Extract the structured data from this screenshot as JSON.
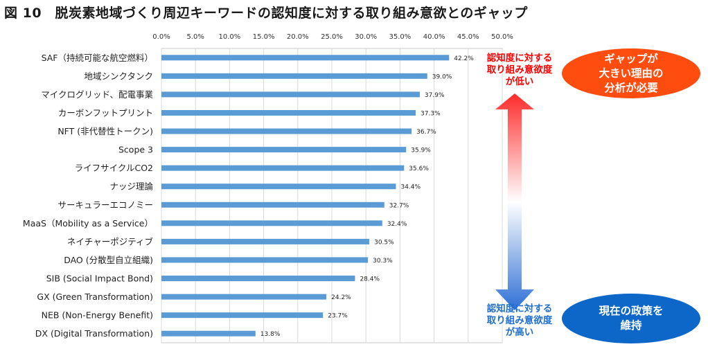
{
  "figure_title": "図 10　脱炭素地域づくり周辺キーワードの認知度に対する取り組み意欲とのギャップ",
  "colors": {
    "bar": "#5b9bd5",
    "arrow_top": "#ff2a2a",
    "arrow_bottom": "#2e6fd6",
    "ellipse_gap": "#ff4d10",
    "ellipse_policy": "#0d67c9"
  },
  "chart_data": {
    "type": "bar",
    "orientation": "horizontal",
    "title": "",
    "xlabel": "",
    "ylabel": "",
    "xlim": [
      0,
      50
    ],
    "x_ticks": [
      "0.0%",
      "5.0%",
      "10.0%",
      "15.0%",
      "20.0%",
      "25.0%",
      "30.0%",
      "35.0%",
      "40.0%",
      "45.0%",
      "50.0%"
    ],
    "grid": true,
    "categories": [
      "SAF（持続可能な航空燃料）",
      "地域シンクタンク",
      "マイクログリッド、配電事業",
      "カーボンフットプリント",
      "NFT (非代替性トークン)",
      "Scope 3",
      "ライフサイクルCO2",
      "ナッジ理論",
      "サーキュラーエコノミー",
      "MaaS（Mobility as a Service）",
      "ネイチャーポジティブ",
      "DAO (分散型自立組織)",
      "SIB (Social Impact Bond)",
      "GX (Green Transformation)",
      "NEB (Non-Energy Benefit)",
      "DX (Digital Transformation)"
    ],
    "values": [
      42.2,
      39.0,
      37.9,
      37.3,
      36.7,
      35.9,
      35.6,
      34.4,
      32.7,
      32.4,
      30.5,
      30.3,
      28.4,
      24.2,
      23.7,
      13.8
    ],
    "data_labels": [
      "42.2%",
      "39.0%",
      "37.9%",
      "37.3%",
      "36.7%",
      "35.9%",
      "35.6%",
      "34.4%",
      "32.7%",
      "32.4%",
      "30.5%",
      "30.3%",
      "28.4%",
      "24.2%",
      "23.7%",
      "13.8%"
    ]
  },
  "annotations": {
    "top_label": [
      "認知度に対する",
      "取り組み意欲度",
      "が低い"
    ],
    "bottom_label": [
      "認知度に対する",
      "取り組み意欲度",
      "が高い"
    ],
    "gap_ellipse": [
      "ギャップが",
      "大きい理由の",
      "分析が必要"
    ],
    "policy_ellipse": [
      "現在の政策を",
      "維持"
    ]
  }
}
